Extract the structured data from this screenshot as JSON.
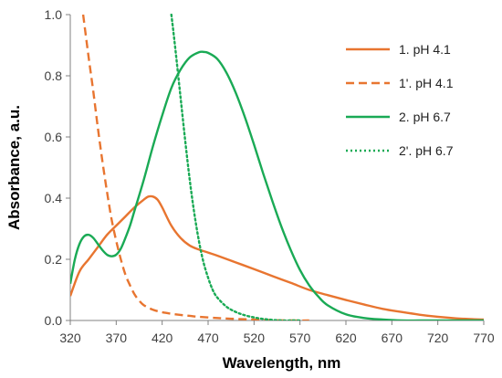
{
  "chart_data": {
    "type": "line",
    "title": "",
    "xlabel": "Wavelength, nm",
    "ylabel": "Absorbance, a.u.",
    "xlim": [
      320,
      770
    ],
    "ylim": [
      0,
      1.0
    ],
    "x_ticks": [
      320,
      370,
      420,
      470,
      520,
      570,
      620,
      670,
      720,
      770
    ],
    "y_ticks": [
      0.0,
      0.2,
      0.4,
      0.6,
      0.8,
      1.0
    ],
    "x_tick_labels": [
      "320",
      "370",
      "420",
      "470",
      "520",
      "570",
      "620",
      "670",
      "720",
      "770"
    ],
    "y_tick_labels": [
      "0.0",
      "0.2",
      "0.4",
      "0.6",
      "0.8",
      "1.0"
    ],
    "grid": false,
    "legend_position": "top-right",
    "series": [
      {
        "name": "1. pH 4.1",
        "color": "#E87530",
        "dash": "solid",
        "x": [
          320,
          330,
          340,
          350,
          360,
          370,
          380,
          390,
          400,
          405,
          410,
          415,
          420,
          430,
          440,
          450,
          460,
          470,
          480,
          500,
          520,
          540,
          560,
          580,
          600,
          620,
          640,
          660,
          680,
          700,
          720,
          740,
          760,
          770
        ],
        "y": [
          0.08,
          0.16,
          0.2,
          0.24,
          0.28,
          0.31,
          0.34,
          0.37,
          0.395,
          0.405,
          0.405,
          0.395,
          0.37,
          0.31,
          0.27,
          0.245,
          0.232,
          0.222,
          0.212,
          0.19,
          0.168,
          0.145,
          0.123,
          0.1,
          0.083,
          0.067,
          0.052,
          0.038,
          0.028,
          0.019,
          0.012,
          0.007,
          0.004,
          0.003
        ]
      },
      {
        "name": "1'. pH 4.1",
        "color": "#E87530",
        "dash": "dashed",
        "x": [
          334,
          340,
          345,
          350,
          355,
          360,
          365,
          370,
          375,
          380,
          385,
          390,
          395,
          400,
          410,
          420,
          430,
          440,
          450,
          460,
          480,
          500,
          520,
          540,
          560,
          580
        ],
        "y": [
          1.0,
          0.86,
          0.75,
          0.63,
          0.52,
          0.42,
          0.33,
          0.26,
          0.2,
          0.15,
          0.115,
          0.085,
          0.065,
          0.05,
          0.035,
          0.027,
          0.022,
          0.018,
          0.015,
          0.012,
          0.008,
          0.005,
          0.003,
          0.001,
          0.0,
          0.0
        ]
      },
      {
        "name": "2. pH 6.7",
        "color": "#1AAA55",
        "dash": "solid",
        "x": [
          320,
          325,
          330,
          335,
          340,
          345,
          350,
          355,
          360,
          365,
          370,
          375,
          380,
          385,
          390,
          400,
          410,
          420,
          430,
          440,
          450,
          460,
          465,
          470,
          480,
          490,
          500,
          510,
          520,
          530,
          540,
          550,
          560,
          570,
          580,
          590,
          600,
          620,
          640,
          660,
          680,
          700,
          720,
          770
        ],
        "y": [
          0.12,
          0.2,
          0.25,
          0.275,
          0.28,
          0.27,
          0.25,
          0.23,
          0.215,
          0.21,
          0.215,
          0.235,
          0.27,
          0.31,
          0.36,
          0.46,
          0.57,
          0.67,
          0.76,
          0.82,
          0.86,
          0.877,
          0.878,
          0.875,
          0.855,
          0.81,
          0.745,
          0.665,
          0.575,
          0.48,
          0.39,
          0.305,
          0.23,
          0.165,
          0.115,
          0.078,
          0.05,
          0.02,
          0.008,
          0.003,
          0.0,
          0.0,
          0.0,
          0.0
        ]
      },
      {
        "name": "2'. pH 6.7",
        "color": "#1AAA55",
        "dash": "dotted",
        "x": [
          430,
          432,
          435,
          440,
          445,
          450,
          455,
          460,
          465,
          470,
          475,
          480,
          490,
          500,
          510,
          520,
          530,
          540,
          550,
          560,
          570
        ],
        "y": [
          1.0,
          0.95,
          0.87,
          0.73,
          0.59,
          0.46,
          0.35,
          0.26,
          0.19,
          0.14,
          0.1,
          0.075,
          0.045,
          0.028,
          0.017,
          0.01,
          0.005,
          0.002,
          0.0,
          0.0,
          0.0
        ]
      }
    ]
  }
}
